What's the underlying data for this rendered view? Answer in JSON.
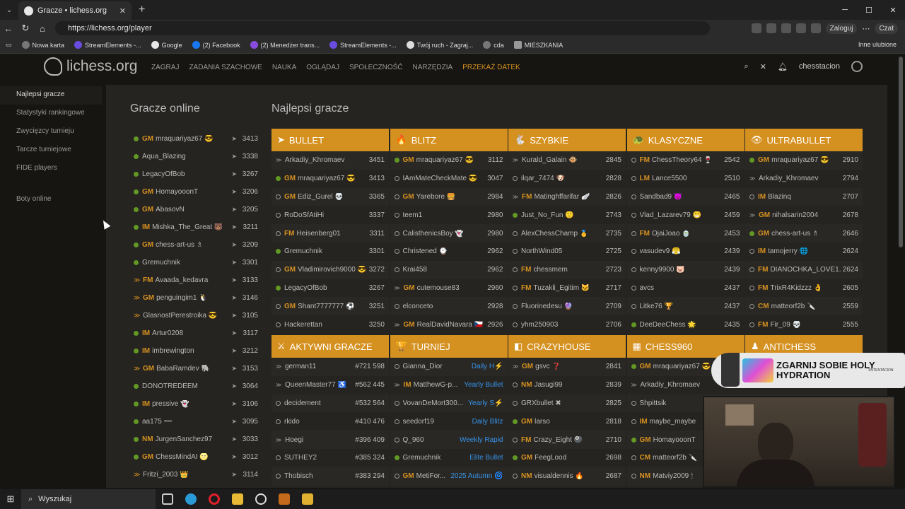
{
  "browser": {
    "tab_title": "Gracze • lichess.org",
    "url": "https://lichess.org/player",
    "login_label": "Zaloguj",
    "copilot_label": "Czat",
    "bookmarks": [
      "Nowa karta",
      "StreamElements -...",
      "Google",
      "(2) Facebook",
      "(2) Menedżer trans...",
      "StreamElements -...",
      "Twój ruch - Zagraj...",
      "cda",
      "MIESZKANIA"
    ],
    "other_bookmarks": "Inne ulubione"
  },
  "site": {
    "logo_text": "lichess.org",
    "nav": [
      "ZAGRAJ",
      "ZADANIA SZACHOWE",
      "NAUKA",
      "OGLĄDAJ",
      "SPOŁECZNOŚĆ",
      "NARZĘDZIA"
    ],
    "donate": "PRZEKAŻ DATEK",
    "username": "chesstacion"
  },
  "sidebar": {
    "items": [
      "Najlepsi gracze",
      "Statystyki rankingowe",
      "Zwycięzcy turnieju",
      "Tarcze turniejowe",
      "FIDE players"
    ],
    "bots": "Boty online"
  },
  "online": {
    "title": "Gracze online",
    "players": [
      {
        "title": "GM",
        "name": "mraquariyaz67 😎",
        "rating": "3413",
        "icon": "online"
      },
      {
        "title": "",
        "name": "Aqua_Blazing",
        "rating": "3338",
        "icon": "online"
      },
      {
        "title": "",
        "name": "LegacyOfBob",
        "rating": "3267",
        "icon": "online"
      },
      {
        "title": "GM",
        "name": "HomayooonT",
        "rating": "3206",
        "icon": "online"
      },
      {
        "title": "GM",
        "name": "AbasovN",
        "rating": "3205",
        "icon": "online"
      },
      {
        "title": "IM",
        "name": "Mishka_The_Great 🐻",
        "rating": "3211",
        "icon": "online"
      },
      {
        "title": "GM",
        "name": "chess-art-us ♗",
        "rating": "3209",
        "icon": "online"
      },
      {
        "title": "",
        "name": "Gremuchnik",
        "rating": "3301",
        "icon": "online"
      },
      {
        "title": "FM",
        "name": "Avaada_kedavra",
        "rating": "3133",
        "icon": "patron"
      },
      {
        "title": "GM",
        "name": "penguingim1 🐧",
        "rating": "3146",
        "icon": "patron"
      },
      {
        "title": "",
        "name": "GlasnostPerestroika 😎",
        "rating": "3105",
        "icon": "patron"
      },
      {
        "title": "IM",
        "name": "Artur0208",
        "rating": "3117",
        "icon": "online"
      },
      {
        "title": "IM",
        "name": "imbrewington",
        "rating": "3212",
        "icon": "online"
      },
      {
        "title": "GM",
        "name": "BabaRamdev 🐘",
        "rating": "3153",
        "icon": "patron"
      },
      {
        "title": "",
        "name": "DONOTREDEEM",
        "rating": "3064",
        "icon": "online"
      },
      {
        "title": "IM",
        "name": "pressive 👻",
        "rating": "3106",
        "icon": "online"
      },
      {
        "title": "",
        "name": "aa175 ➖",
        "rating": "3095",
        "icon": "online"
      },
      {
        "title": "NM",
        "name": "JurgenSanchez97",
        "rating": "3033",
        "icon": "online"
      },
      {
        "title": "GM",
        "name": "ChessMindAI 🌝",
        "rating": "3012",
        "icon": "online"
      },
      {
        "title": "",
        "name": "Fritzi_2003 👑",
        "rating": "3114",
        "icon": "patron"
      }
    ]
  },
  "leaders": {
    "title": "Najlepsi gracze",
    "boards": [
      {
        "name": "BULLET",
        "icon": "➤",
        "rows": [
          {
            "s": "wing",
            "t": "",
            "n": "Arkadiy_Khromaev",
            "v": "3451"
          },
          {
            "s": "on",
            "t": "GM",
            "n": "mraquariyaz67 😎",
            "v": "3413"
          },
          {
            "s": "off",
            "t": "GM",
            "n": "Ediz_Gurel 💀",
            "v": "3365"
          },
          {
            "s": "off",
            "t": "",
            "n": "RoDoSfAtiHi",
            "v": "3337"
          },
          {
            "s": "off",
            "t": "FM",
            "n": "Heisenberg01",
            "v": "3311"
          },
          {
            "s": "on",
            "t": "",
            "n": "Gremuchnik",
            "v": "3301"
          },
          {
            "s": "off",
            "t": "GM",
            "n": "Vladimirovich9000 😎",
            "v": "3272"
          },
          {
            "s": "on",
            "t": "",
            "n": "LegacyOfBob",
            "v": "3267"
          },
          {
            "s": "off",
            "t": "GM",
            "n": "Shant7777777 ⚽",
            "v": "3251"
          },
          {
            "s": "off",
            "t": "",
            "n": "Hackerettan",
            "v": "3250"
          }
        ]
      },
      {
        "name": "BLITZ",
        "icon": "🔥",
        "rows": [
          {
            "s": "on",
            "t": "GM",
            "n": "mraquariyaz67 😎",
            "v": "3112"
          },
          {
            "s": "off",
            "t": "",
            "n": "IAmMateCheckMate 😎",
            "v": "3047"
          },
          {
            "s": "off",
            "t": "GM",
            "n": "Yarebore 🍔",
            "v": "2984"
          },
          {
            "s": "off",
            "t": "",
            "n": "teem1",
            "v": "2980"
          },
          {
            "s": "off",
            "t": "",
            "n": "CalisthenicsBoy 👻",
            "v": "2980"
          },
          {
            "s": "off",
            "t": "",
            "n": "Christened ⌚",
            "v": "2962"
          },
          {
            "s": "off",
            "t": "",
            "n": "Krai458",
            "v": "2962"
          },
          {
            "s": "wing",
            "t": "GM",
            "n": "cutemouse83",
            "v": "2960"
          },
          {
            "s": "off",
            "t": "",
            "n": "elconceto",
            "v": "2928"
          },
          {
            "s": "wing",
            "t": "GM",
            "n": "RealDavidNavara 🇨🇿",
            "v": "2926"
          }
        ]
      },
      {
        "name": "SZYBKIE",
        "icon": "🐇",
        "rows": [
          {
            "s": "wing",
            "t": "",
            "n": "Kurald_Galain 🐵",
            "v": "2845"
          },
          {
            "s": "off",
            "t": "",
            "n": "ilqar_7474 🐶",
            "v": "2828"
          },
          {
            "s": "wing",
            "t": "FM",
            "n": "Matinghffarifar 🪽",
            "v": "2826"
          },
          {
            "s": "on",
            "t": "",
            "n": "Just_No_Fun 🙂",
            "v": "2743"
          },
          {
            "s": "off",
            "t": "",
            "n": "AlexChessChamp 🥇",
            "v": "2735"
          },
          {
            "s": "off",
            "t": "",
            "n": "NorthWind05",
            "v": "2725"
          },
          {
            "s": "off",
            "t": "FM",
            "n": "chessmem",
            "v": "2723"
          },
          {
            "s": "off",
            "t": "FM",
            "n": "Tuzakli_Egitim 🐱",
            "v": "2717"
          },
          {
            "s": "off",
            "t": "",
            "n": "Fluorinedesu 🔮",
            "v": "2709"
          },
          {
            "s": "off",
            "t": "",
            "n": "yhm250903",
            "v": "2706"
          }
        ]
      },
      {
        "name": "KLASYCZNE",
        "icon": "🐢",
        "rows": [
          {
            "s": "off",
            "t": "FM",
            "n": "ChessTheory64 🍷",
            "v": "2542"
          },
          {
            "s": "off",
            "t": "LM",
            "n": "Lance5500",
            "v": "2510"
          },
          {
            "s": "off",
            "t": "",
            "n": "Sandbad9 😈",
            "v": "2465"
          },
          {
            "s": "off",
            "t": "",
            "n": "Vlad_Lazarev79 😁",
            "v": "2459"
          },
          {
            "s": "off",
            "t": "FM",
            "n": "OjaiJoao 🍵",
            "v": "2453"
          },
          {
            "s": "off",
            "t": "",
            "n": "vasudev9 😤",
            "v": "2439"
          },
          {
            "s": "off",
            "t": "",
            "n": "kenny9900 🐷",
            "v": "2439"
          },
          {
            "s": "off",
            "t": "",
            "n": "avcs",
            "v": "2437"
          },
          {
            "s": "off",
            "t": "",
            "n": "Litke76 🏆",
            "v": "2437"
          },
          {
            "s": "on",
            "t": "",
            "n": "DeeDeeChess 🌟",
            "v": "2435"
          }
        ]
      },
      {
        "name": "ULTRABULLET",
        "icon": "👁",
        "rows": [
          {
            "s": "on",
            "t": "GM",
            "n": "mraquariyaz67 😎",
            "v": "2910"
          },
          {
            "s": "wing",
            "t": "",
            "n": "Arkadiy_Khromaev",
            "v": "2794"
          },
          {
            "s": "off",
            "t": "IM",
            "n": "Blazinq",
            "v": "2707"
          },
          {
            "s": "wing",
            "t": "GM",
            "n": "nihalsarin2004",
            "v": "2678"
          },
          {
            "s": "on",
            "t": "GM",
            "n": "chess-art-us ♗",
            "v": "2646"
          },
          {
            "s": "off",
            "t": "IM",
            "n": "tamojerry 🌐",
            "v": "2624"
          },
          {
            "s": "off",
            "t": "FM",
            "n": "DIANOCHKA_LOVE1...",
            "v": "2624"
          },
          {
            "s": "off",
            "t": "FM",
            "n": "TrixR4Kidzzz 👌",
            "v": "2605"
          },
          {
            "s": "off",
            "t": "CM",
            "n": "matteorf2b 🔪",
            "v": "2559"
          },
          {
            "s": "off",
            "t": "FM",
            "n": "Fir_09 💀",
            "v": "2555"
          }
        ]
      }
    ],
    "boards2": [
      {
        "name": "AKTYWNI GRACZE",
        "icon": "⚔",
        "rows": [
          {
            "s": "wing",
            "t": "",
            "n": "german11",
            "v": "#721 598"
          },
          {
            "s": "wing",
            "t": "",
            "n": "QueenMaster77 ♿",
            "v": "#562 445"
          },
          {
            "s": "off",
            "t": "",
            "n": "decidement",
            "v": "#532 564"
          },
          {
            "s": "off",
            "t": "",
            "n": "rkido",
            "v": "#410 476"
          },
          {
            "s": "wing",
            "t": "",
            "n": "Hoegi",
            "v": "#396 409"
          },
          {
            "s": "off",
            "t": "",
            "n": "SUTHEY2",
            "v": "#385 324"
          },
          {
            "s": "off",
            "t": "",
            "n": "Thobisch",
            "v": "#383 294"
          }
        ]
      },
      {
        "name": "TURNIEJ",
        "icon": "🏆",
        "rows": [
          {
            "s": "off",
            "t": "",
            "n": "Gianna_Dior",
            "v": "Daily H⚡",
            "blue": true
          },
          {
            "s": "wing",
            "t": "IM",
            "n": "MatthewG-p...",
            "v": "Yearly Bullet",
            "blue": true
          },
          {
            "s": "off",
            "t": "",
            "n": "VovanDeMort300...",
            "v": "Yearly S⚡",
            "blue": true
          },
          {
            "s": "off",
            "t": "",
            "n": "seedorf19",
            "v": "Daily Blitz",
            "blue": true
          },
          {
            "s": "off",
            "t": "",
            "n": "Q_960",
            "v": "Weekly Rapid",
            "blue": true
          },
          {
            "s": "on",
            "t": "",
            "n": "Gremuchnik",
            "v": "Elite Bullet",
            "blue": true
          },
          {
            "s": "off",
            "t": "GM",
            "n": "MetiFor...",
            "v": "2025 Autumn 🌀",
            "blue": true
          }
        ]
      },
      {
        "name": "CRAZYHOUSE",
        "icon": "◧",
        "rows": [
          {
            "s": "wing",
            "t": "GM",
            "n": "gsvc ❓",
            "v": "2841"
          },
          {
            "s": "off",
            "t": "NM",
            "n": "Jasugi99",
            "v": "2839"
          },
          {
            "s": "off",
            "t": "",
            "n": "GRXbullet ✖",
            "v": "2825"
          },
          {
            "s": "on",
            "t": "GM",
            "n": "larso",
            "v": "2818"
          },
          {
            "s": "off",
            "t": "FM",
            "n": "Crazy_Eight 🎱",
            "v": "2710"
          },
          {
            "s": "on",
            "t": "GM",
            "n": "FeegLood",
            "v": "2698"
          },
          {
            "s": "off",
            "t": "NM",
            "n": "visualdennis 🔥",
            "v": "2687"
          }
        ]
      },
      {
        "name": "CHESS960",
        "icon": "▦",
        "rows": [
          {
            "s": "on",
            "t": "GM",
            "n": "mraquariyaz67 😎",
            "v": ""
          },
          {
            "s": "wing",
            "t": "",
            "n": "Arkadiy_Khromaev",
            "v": ""
          },
          {
            "s": "off",
            "t": "",
            "n": "Shpittsik",
            "v": ""
          },
          {
            "s": "off",
            "t": "IM",
            "n": "maybe_maybe",
            "v": ""
          },
          {
            "s": "on",
            "t": "GM",
            "n": "HomayooonT",
            "v": ""
          },
          {
            "s": "off",
            "t": "CM",
            "n": "matteorf2b 🔪",
            "v": ""
          },
          {
            "s": "off",
            "t": "NM",
            "n": "Matviy2009 🕯",
            "v": ""
          }
        ]
      },
      {
        "name": "ANTICHESS",
        "icon": "♟",
        "rows": [
          {
            "s": "off",
            "t": "",
            "n": "",
            "v": ""
          },
          {
            "s": "off",
            "t": "",
            "n": "",
            "v": ""
          },
          {
            "s": "off",
            "t": "",
            "n": "",
            "v": ""
          },
          {
            "s": "off",
            "t": "",
            "n": "",
            "v": ""
          },
          {
            "s": "off",
            "t": "",
            "n": "",
            "v": ""
          },
          {
            "s": "off",
            "t": "",
            "n": "",
            "v": ""
          },
          {
            "s": "off",
            "t": "",
            "n": "",
            "v": ""
          }
        ]
      }
    ]
  },
  "promo": {
    "text": "ZGARNIJ SOBIE HOLY HYDRATION",
    "brand": "XNTENTACION"
  },
  "taskbar": {
    "search": "Wyszukaj"
  },
  "colors": {
    "accent": "#d59120",
    "online": "#629924",
    "link": "#3692e7",
    "bg": "#161512",
    "panel": "#262421"
  }
}
